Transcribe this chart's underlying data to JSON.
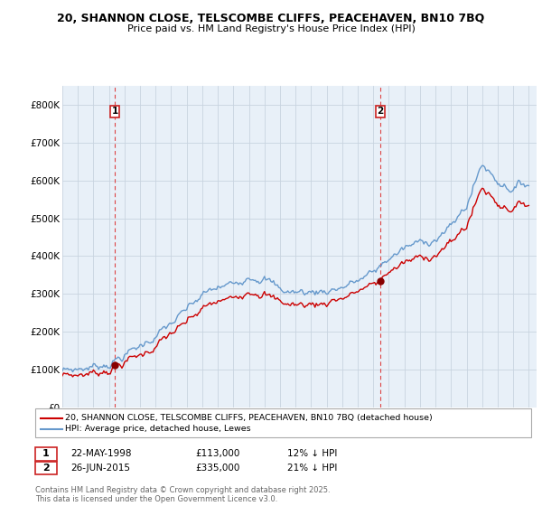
{
  "title_line1": "20, SHANNON CLOSE, TELSCOMBE CLIFFS, PEACEHAVEN, BN10 7BQ",
  "title_line2": "Price paid vs. HM Land Registry's House Price Index (HPI)",
  "legend_label_red": "20, SHANNON CLOSE, TELSCOMBE CLIFFS, PEACEHAVEN, BN10 7BQ (detached house)",
  "legend_label_blue": "HPI: Average price, detached house, Lewes",
  "transaction1_date": "22-MAY-1998",
  "transaction1_price": "£113,000",
  "transaction1_hpi": "12% ↓ HPI",
  "transaction2_date": "26-JUN-2015",
  "transaction2_price": "£335,000",
  "transaction2_hpi": "21% ↓ HPI",
  "footer": "Contains HM Land Registry data © Crown copyright and database right 2025.\nThis data is licensed under the Open Government Licence v3.0.",
  "background_color": "#ffffff",
  "plot_bg_color": "#e8f0f8",
  "grid_color": "#c8d4e0",
  "line_color_red": "#cc0000",
  "line_color_blue": "#6699cc",
  "vline_color": "#dd4444",
  "marker_color_red": "#880000",
  "ylim": [
    0,
    850000
  ],
  "yticks": [
    0,
    100000,
    200000,
    300000,
    400000,
    500000,
    600000,
    700000,
    800000
  ],
  "ytick_labels": [
    "£0",
    "£100K",
    "£200K",
    "£300K",
    "£400K",
    "£500K",
    "£600K",
    "£700K",
    "£800K"
  ],
  "hpi_discount": 0.79,
  "hpi_key_years": [
    1995,
    1996,
    1997,
    1998,
    1999,
    2000,
    2001,
    2002,
    2003,
    2004,
    2005,
    2006,
    2007,
    2008,
    2009,
    2010,
    2011,
    2012,
    2013,
    2014,
    2015,
    2016,
    2017,
    2018,
    2019,
    2020,
    2021,
    2022,
    2023,
    2024,
    2025
  ],
  "hpi_key_values": [
    97000,
    102000,
    108000,
    118000,
    138000,
    162000,
    190000,
    220000,
    255000,
    295000,
    315000,
    325000,
    355000,
    345000,
    310000,
    305000,
    305000,
    310000,
    320000,
    335000,
    355000,
    395000,
    420000,
    435000,
    450000,
    475000,
    535000,
    645000,
    600000,
    580000,
    595000
  ]
}
